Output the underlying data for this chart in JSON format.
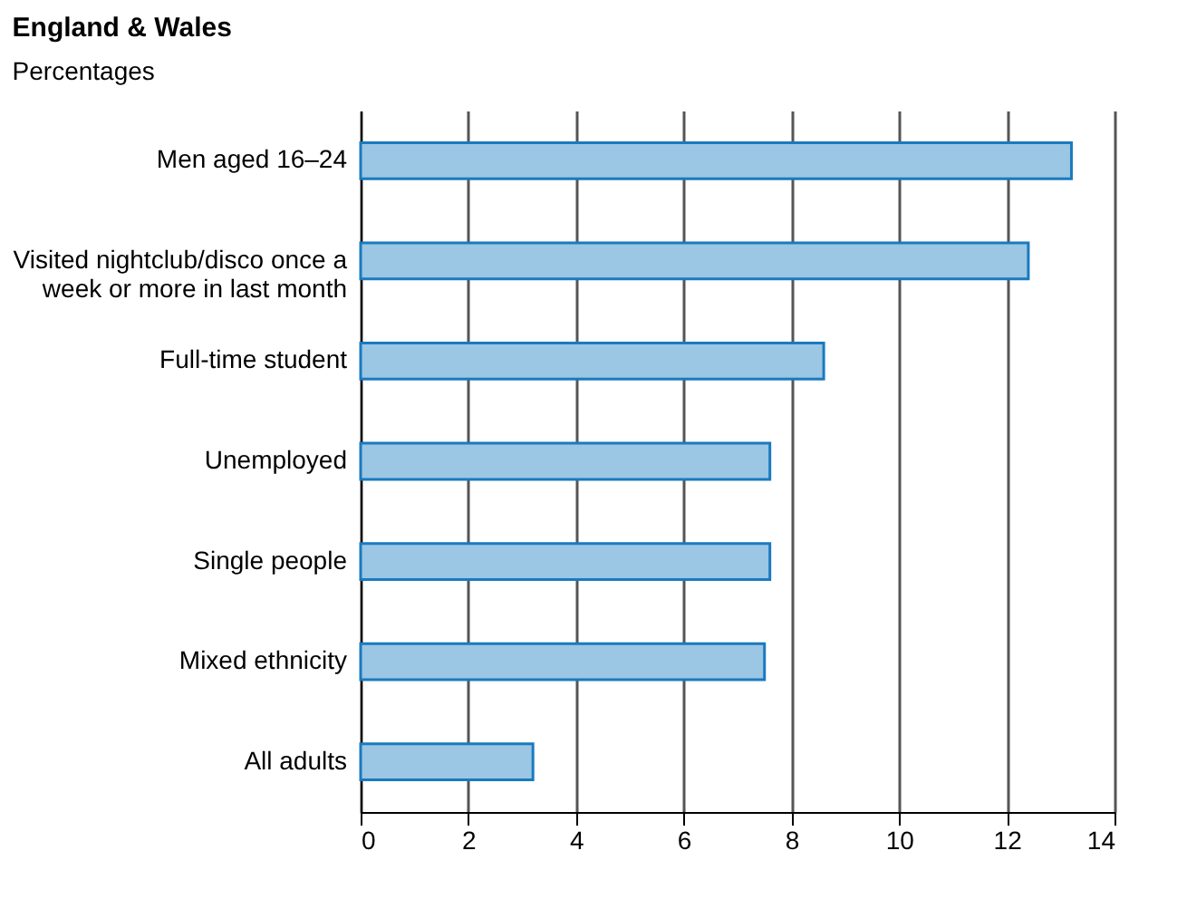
{
  "chart_data": {
    "type": "bar",
    "orientation": "horizontal",
    "title": "England & Wales",
    "subtitle": "Percentages",
    "categories": [
      "Men aged 16–24",
      "Visited nightclub/disco once a\nweek or more in last month",
      "Full-time student",
      "Unemployed",
      "Single people",
      "Mixed ethnicity",
      "All adults"
    ],
    "values": [
      13.2,
      12.4,
      8.6,
      7.6,
      7.6,
      7.5,
      3.2
    ],
    "color": "#9bc6e4",
    "xlim": [
      0,
      14
    ],
    "xticks": [
      0,
      2,
      4,
      6,
      8,
      10,
      12,
      14
    ],
    "grid": "x"
  }
}
